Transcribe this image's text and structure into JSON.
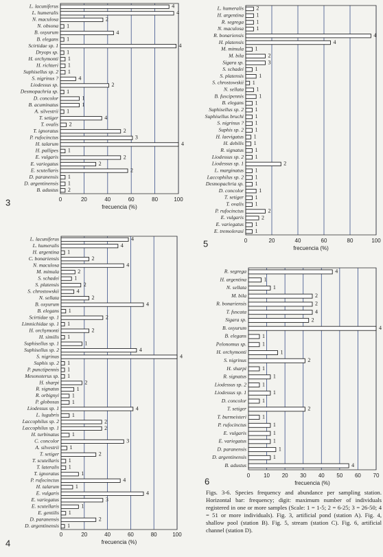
{
  "chart_data": [
    {
      "type": "bar",
      "label": "3",
      "xlabel": "frecuencia (%)",
      "color": "#ffffff",
      "grid": true,
      "xlim": [
        0,
        100
      ],
      "xticks": [
        0,
        20,
        40,
        60,
        80,
        100
      ],
      "categories": [
        "L. lacuniferus",
        "L. humeralis",
        "N. maculosa",
        "N. obsona",
        "B. oxyurum",
        "B. elegans",
        "Scirtidae sp. 1",
        "Dryops sp.",
        "H. orchymonti",
        "H. richteri",
        "Suphisellus sp. 2",
        "S. nigrinus ?",
        "Liodessus sp.",
        "Desmopachria sp.",
        "D. concolor",
        "B. acuminatus",
        "A. silvestrii",
        "T. setiger",
        "T. ovalis",
        "T. ignoratus",
        "P. rufocinctus",
        "H. talarum",
        "H. pallipes",
        "E. vulgaris",
        "E. variegatus",
        "E. scutellaris",
        "D. paranensis",
        "D. argentinensis",
        "B. adustus"
      ],
      "values": [
        92,
        96,
        36,
        3,
        45,
        3,
        98,
        3,
        4,
        4,
        4,
        13,
        41,
        3,
        16,
        16,
        3,
        35,
        5,
        51,
        61,
        100,
        4,
        51,
        30,
        57,
        4,
        4,
        4
      ],
      "abundance": [
        4,
        4,
        2,
        1,
        4,
        1,
        4,
        1,
        1,
        1,
        1,
        4,
        2,
        1,
        1,
        1,
        1,
        4,
        2,
        2,
        3,
        4,
        1,
        2,
        2,
        2,
        1,
        1,
        2
      ]
    },
    {
      "type": "bar",
      "label": "4",
      "xlabel": "frecuencia (%)",
      "color": "#ffffff",
      "grid": true,
      "xlim": [
        0,
        100
      ],
      "xticks": [
        0,
        20,
        40,
        60,
        80,
        100
      ],
      "categories": [
        "L. lacuniferus",
        "L. humeralis",
        "H. argentina",
        "C. bonariensis",
        "N. maculosa",
        "M. mimula",
        "S. schadei",
        "S. platensis",
        "S. chrostowskii",
        "N. sellata",
        "B. oxyurum",
        "B. elegans",
        "Scirtidae sp. 1",
        "Limnichidae sp. 1",
        "H. orchymonti",
        "H. similis",
        "Suphisellus sp. 1",
        "Suphisellus sp. 2",
        "S. nigrinus",
        "Suphis sp. 2",
        "P. punctipennis",
        "Mesonoterus sp.",
        "H. sharpi",
        "R. signatus",
        "R. orbignyi",
        "P. globosus",
        "Liodessus sp. 1",
        "L. lugubris",
        "Laccophilus sp. 2",
        "Laccophilus sp. 1",
        "H. turbinatus",
        "C. concolor",
        "A. silvestrii",
        "T. setiger",
        "T. scutellaris",
        "T. lateralis",
        "T. ignoratus",
        "P. rufocinctus",
        "H. talarum",
        "E. vulgaris",
        "E. variegatus",
        "E. scutellaris",
        "E. gentilis",
        "D. paranensis",
        "D. argentinensis"
      ],
      "values": [
        58,
        49,
        3,
        24,
        54,
        12,
        9,
        17,
        11,
        24,
        71,
        4,
        36,
        3,
        24,
        3,
        18,
        65,
        100,
        3,
        3,
        3,
        18,
        11,
        7,
        7,
        62,
        7,
        35,
        35,
        7,
        54,
        5,
        30,
        4,
        4,
        15,
        51,
        10,
        71,
        36,
        15,
        4,
        30,
        3
      ],
      "abundance": [
        4,
        4,
        1,
        2,
        4,
        2,
        1,
        2,
        4,
        2,
        4,
        1,
        2,
        1,
        2,
        1,
        1,
        4,
        4,
        1,
        1,
        1,
        2,
        1,
        1,
        1,
        4,
        1,
        2,
        2,
        1,
        3,
        1,
        2,
        1,
        1,
        1,
        4,
        1,
        4,
        3,
        1,
        1,
        2,
        1
      ]
    },
    {
      "type": "bar",
      "label": "5",
      "xlabel": "frecuencia (%)",
      "color": "#ffffff",
      "grid": true,
      "xlim": [
        0,
        100
      ],
      "xticks": [
        0,
        20,
        40,
        60,
        80,
        100
      ],
      "categories": [
        "L. humeralis",
        "H. argentina",
        "R. segrega",
        "N. maculosa",
        "R. bonariensis",
        "H. platensis",
        "M. mimula",
        "M. bila",
        "Sigara sp.",
        "S. schadei",
        "S. platensis",
        "S. chrostowskii",
        "N. sellata",
        "B. fuscipennis",
        "B. elegans",
        "Suphisellus sp. 2",
        "Suphisellus bruchi",
        "S. nigrinus ?",
        "Suphis sp. 2",
        "H. laevigatus",
        "H. debilis",
        "R. signatus",
        "Liodessus sp. 2",
        "Liodessus sp. 1",
        "L. marginatus",
        "Laccophilus sp. 2",
        "Desmopachria sp.",
        "D. concolor",
        "T. setiger",
        "T. ovalis",
        "P. rufocinctus",
        "E. vulgaris",
        "E. variegatus",
        "E. tremolerasi"
      ],
      "values": [
        6,
        6,
        6,
        6,
        96,
        65,
        5,
        15,
        15,
        5,
        8,
        3,
        6,
        8,
        5,
        5,
        5,
        5,
        5,
        4,
        4,
        5,
        5,
        27,
        5,
        5,
        5,
        8,
        5,
        5,
        15,
        10,
        5,
        5
      ],
      "abundance": [
        2,
        1,
        1,
        1,
        4,
        4,
        1,
        2,
        3,
        1,
        1,
        1,
        1,
        1,
        1,
        1,
        1,
        1,
        1,
        1,
        1,
        1,
        1,
        2,
        1,
        1,
        1,
        1,
        1,
        1,
        2,
        2,
        1,
        1
      ]
    },
    {
      "type": "bar",
      "label": "6",
      "xlabel": "frecuencia (%)",
      "color": "#ffffff",
      "grid": true,
      "xlim": [
        0,
        70
      ],
      "xticks": [
        0,
        10,
        20,
        30,
        40,
        50,
        60,
        70
      ],
      "categories": [
        "R. segrega",
        "H. argentina",
        "N. sellata",
        "M. bila",
        "R. bonariensis",
        "T. fuscata",
        "Sigara sp.",
        "B. oxyurum",
        "B. elegans",
        "Pelonomus sp.",
        "H. orchymonti",
        "S. nigrinus",
        "H. sharpi",
        "R. signatus",
        "Liodessus sp. 2",
        "Liodessus sp. 1",
        "D. concolor",
        "T. setiger",
        "T. burmeisteri",
        "P. rufocinctus",
        "E. vulgaris",
        "E. variegatus",
        "D. paranensis",
        "D. argentinensis",
        "B. adustus"
      ],
      "values": [
        46,
        7,
        12,
        35,
        35,
        35,
        33,
        70,
        6,
        6,
        16,
        31,
        6,
        12,
        6,
        12,
        6,
        31,
        6,
        12,
        12,
        12,
        15,
        12,
        55
      ],
      "abundance": [
        4,
        1,
        1,
        2,
        2,
        4,
        2,
        4,
        1,
        1,
        1,
        2,
        1,
        1,
        1,
        1,
        1,
        2,
        1,
        1,
        1,
        1,
        1,
        1,
        4
      ]
    }
  ],
  "caption": "Figs. 3-6. Species frequency and abundance per sampling station. Horizontal bar: frequency; digit: maximum number of individuals registered in one or more samples (Scale: 1 = 1-5; 2 = 6-25; 3 = 26-50; 4 = 51 or more individuals). Fig. 3, artificial pond (station A). Fig. 4, shallow pool (station B). Fig. 5, stream (station C). Fig. 6, artificial channel (station D)."
}
